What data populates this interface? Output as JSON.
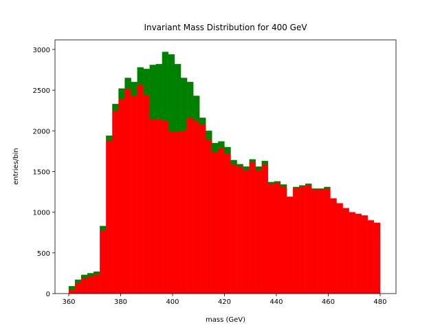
{
  "chart_data": {
    "type": "stacked_histogram",
    "title": "Invariant Mass Distribution for 400 GeV",
    "x_label": "mass (GeV)",
    "y_label": "entries/bin",
    "bins": [
      360,
      362.4,
      364.8,
      367.2,
      369.6,
      372,
      374.4,
      376.8,
      379.2,
      381.6,
      384,
      386.4,
      388.8,
      391.2,
      393.6,
      396,
      398.4,
      400.8,
      403.2,
      405.6,
      408,
      410.4,
      412.8,
      415.2,
      417.6,
      420,
      422.4,
      424.8,
      427.2,
      429.6,
      432,
      434.4,
      436.8,
      439.2,
      441.6,
      444,
      446.4,
      448.8,
      451.2,
      453.6,
      456,
      458.4,
      460.8,
      463.2,
      465.6,
      468,
      470.4,
      472.8,
      475.2,
      477.6,
      480
    ],
    "series": [
      {
        "color": "#ff0000",
        "values": [
          50,
          130,
          190,
          210,
          230,
          770,
          1880,
          2240,
          2390,
          2520,
          2430,
          2570,
          2440,
          2140,
          2140,
          2130,
          1990,
          1990,
          2000,
          2160,
          2120,
          2080,
          1890,
          1740,
          1790,
          1720,
          1590,
          1560,
          1520,
          1620,
          1520,
          1590,
          1350,
          1360,
          1310,
          1190,
          1300,
          1320,
          1330,
          1280,
          1280,
          1290,
          1170,
          1110,
          1050,
          1000,
          980,
          960,
          900,
          870
        ]
      },
      {
        "color": "#008000",
        "values": [
          40,
          40,
          40,
          40,
          40,
          60,
          60,
          90,
          130,
          130,
          170,
          210,
          320,
          670,
          680,
          840,
          950,
          830,
          650,
          440,
          310,
          80,
          110,
          110,
          80,
          80,
          50,
          30,
          40,
          30,
          40,
          40,
          20,
          20,
          30,
          0,
          10,
          10,
          20,
          10,
          10,
          20,
          0,
          0,
          0,
          0,
          0,
          0,
          0,
          0
        ]
      }
    ],
    "xlim": [
      354.7,
      486.1
    ],
    "ylim": [
      0,
      3118
    ],
    "xticks": [
      360,
      380,
      400,
      420,
      440,
      460,
      480
    ],
    "yticks": [
      0,
      500,
      1000,
      1500,
      2000,
      2500,
      3000
    ]
  }
}
